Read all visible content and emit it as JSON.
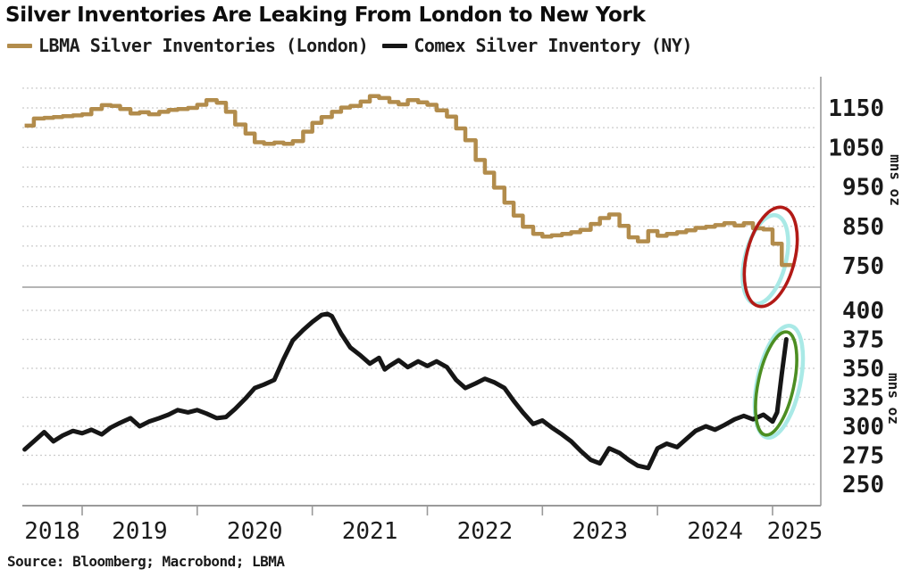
{
  "title": "Silver Inventories Are Leaking From London to New York",
  "source": "Source: Bloomberg; Macrobond; LBMA",
  "legend": [
    {
      "label": "LBMA Silver Inventories (London)",
      "color": "#b28c4c"
    },
    {
      "label": "Comex Silver Inventory (NY)",
      "color": "#161616"
    }
  ],
  "colors": {
    "grid": "#cccccc",
    "axis": "#9a9a9a",
    "divider": "#b5b5b5",
    "red_circle": "#b21a16",
    "green_circle": "#4c8e22",
    "cyan_highlight": "#a9e9e6"
  },
  "chart_data": {
    "type": "line",
    "title": "Silver Inventories Are Leaking From London to New York",
    "x_axis": {
      "year_labels": [
        2018,
        2019,
        2020,
        2021,
        2022,
        2023,
        2024,
        2025
      ],
      "range": [
        2018.47,
        2025.39
      ],
      "grid": false
    },
    "panels": [
      {
        "name": "LBMA Silver Inventories (London)",
        "position": "top",
        "color": "#b28c4c",
        "line_style": "step",
        "unit": "mns oz",
        "ylim": [
          705,
          1232
        ],
        "tick_labels": [
          1150,
          1050,
          950,
          850,
          750
        ],
        "grid_values": [
          1200,
          1150,
          1100,
          1050,
          1000,
          950,
          900,
          850,
          800,
          750
        ],
        "points": [
          [
            2018.5,
            1105
          ],
          [
            2018.58,
            1123
          ],
          [
            2018.67,
            1125
          ],
          [
            2018.75,
            1127
          ],
          [
            2018.83,
            1129
          ],
          [
            2018.92,
            1131
          ],
          [
            2019.0,
            1134
          ],
          [
            2019.08,
            1147
          ],
          [
            2019.17,
            1157
          ],
          [
            2019.25,
            1155
          ],
          [
            2019.33,
            1147
          ],
          [
            2019.42,
            1136
          ],
          [
            2019.5,
            1139
          ],
          [
            2019.58,
            1134
          ],
          [
            2019.67,
            1140
          ],
          [
            2019.75,
            1145
          ],
          [
            2019.83,
            1147
          ],
          [
            2019.92,
            1150
          ],
          [
            2020.0,
            1158
          ],
          [
            2020.08,
            1170
          ],
          [
            2020.17,
            1163
          ],
          [
            2020.25,
            1140
          ],
          [
            2020.33,
            1108
          ],
          [
            2020.42,
            1085
          ],
          [
            2020.5,
            1063
          ],
          [
            2020.58,
            1059
          ],
          [
            2020.67,
            1062
          ],
          [
            2020.75,
            1059
          ],
          [
            2020.83,
            1066
          ],
          [
            2020.92,
            1090
          ],
          [
            2021.0,
            1112
          ],
          [
            2021.08,
            1127
          ],
          [
            2021.17,
            1140
          ],
          [
            2021.25,
            1151
          ],
          [
            2021.33,
            1155
          ],
          [
            2021.42,
            1166
          ],
          [
            2021.5,
            1180
          ],
          [
            2021.58,
            1175
          ],
          [
            2021.67,
            1165
          ],
          [
            2021.75,
            1159
          ],
          [
            2021.83,
            1170
          ],
          [
            2021.92,
            1164
          ],
          [
            2022.0,
            1158
          ],
          [
            2022.08,
            1144
          ],
          [
            2022.17,
            1128
          ],
          [
            2022.25,
            1098
          ],
          [
            2022.33,
            1068
          ],
          [
            2022.42,
            1018
          ],
          [
            2022.5,
            986
          ],
          [
            2022.58,
            948
          ],
          [
            2022.67,
            910
          ],
          [
            2022.75,
            877
          ],
          [
            2022.83,
            849
          ],
          [
            2022.92,
            831
          ],
          [
            2023.0,
            824
          ],
          [
            2023.08,
            827
          ],
          [
            2023.17,
            831
          ],
          [
            2023.25,
            835
          ],
          [
            2023.33,
            841
          ],
          [
            2023.42,
            856
          ],
          [
            2023.5,
            871
          ],
          [
            2023.58,
            880
          ],
          [
            2023.67,
            851
          ],
          [
            2023.75,
            822
          ],
          [
            2023.83,
            812
          ],
          [
            2023.92,
            838
          ],
          [
            2024.0,
            826
          ],
          [
            2024.08,
            831
          ],
          [
            2024.17,
            835
          ],
          [
            2024.25,
            840
          ],
          [
            2024.33,
            846
          ],
          [
            2024.42,
            849
          ],
          [
            2024.5,
            853
          ],
          [
            2024.58,
            858
          ],
          [
            2024.67,
            852
          ],
          [
            2024.75,
            858
          ],
          [
            2024.83,
            845
          ],
          [
            2024.92,
            842
          ],
          [
            2025.0,
            806
          ],
          [
            2025.08,
            752
          ],
          [
            2025.17,
            752
          ]
        ]
      },
      {
        "name": "Comex Silver Inventory (NY)",
        "position": "bottom",
        "color": "#161616",
        "line_style": "linear",
        "unit": "mns oz",
        "ylim": [
          232,
          420
        ],
        "tick_labels": [
          400,
          375,
          350,
          325,
          300,
          275,
          250
        ],
        "grid_values": [
          400,
          375,
          350,
          325,
          300,
          275,
          250
        ],
        "points": [
          [
            2018.5,
            280
          ],
          [
            2018.58,
            287
          ],
          [
            2018.67,
            295
          ],
          [
            2018.75,
            287
          ],
          [
            2018.83,
            292
          ],
          [
            2018.92,
            296
          ],
          [
            2019.0,
            294
          ],
          [
            2019.08,
            297
          ],
          [
            2019.17,
            293
          ],
          [
            2019.25,
            299
          ],
          [
            2019.33,
            303
          ],
          [
            2019.42,
            307
          ],
          [
            2019.5,
            300
          ],
          [
            2019.58,
            304
          ],
          [
            2019.67,
            307
          ],
          [
            2019.75,
            310
          ],
          [
            2019.83,
            314
          ],
          [
            2019.92,
            312
          ],
          [
            2020.0,
            314
          ],
          [
            2020.08,
            311
          ],
          [
            2020.17,
            307
          ],
          [
            2020.25,
            308
          ],
          [
            2020.33,
            315
          ],
          [
            2020.42,
            324
          ],
          [
            2020.5,
            333
          ],
          [
            2020.58,
            336
          ],
          [
            2020.67,
            340
          ],
          [
            2020.75,
            358
          ],
          [
            2020.83,
            374
          ],
          [
            2020.92,
            383
          ],
          [
            2021.0,
            390
          ],
          [
            2021.08,
            396
          ],
          [
            2021.13,
            397
          ],
          [
            2021.17,
            395
          ],
          [
            2021.25,
            380
          ],
          [
            2021.33,
            368
          ],
          [
            2021.42,
            361
          ],
          [
            2021.5,
            354
          ],
          [
            2021.58,
            359
          ],
          [
            2021.63,
            349
          ],
          [
            2021.67,
            352
          ],
          [
            2021.75,
            357
          ],
          [
            2021.83,
            351
          ],
          [
            2021.92,
            356
          ],
          [
            2022.0,
            352
          ],
          [
            2022.08,
            356
          ],
          [
            2022.17,
            351
          ],
          [
            2022.25,
            340
          ],
          [
            2022.33,
            333
          ],
          [
            2022.42,
            337
          ],
          [
            2022.5,
            341
          ],
          [
            2022.58,
            338
          ],
          [
            2022.67,
            333
          ],
          [
            2022.75,
            322
          ],
          [
            2022.83,
            312
          ],
          [
            2022.92,
            302
          ],
          [
            2023.0,
            305
          ],
          [
            2023.08,
            299
          ],
          [
            2023.17,
            293
          ],
          [
            2023.25,
            287
          ],
          [
            2023.33,
            279
          ],
          [
            2023.42,
            271
          ],
          [
            2023.5,
            268
          ],
          [
            2023.58,
            281
          ],
          [
            2023.67,
            277
          ],
          [
            2023.75,
            271
          ],
          [
            2023.83,
            266
          ],
          [
            2023.92,
            264
          ],
          [
            2024.0,
            281
          ],
          [
            2024.08,
            285
          ],
          [
            2024.17,
            282
          ],
          [
            2024.25,
            289
          ],
          [
            2024.33,
            296
          ],
          [
            2024.42,
            300
          ],
          [
            2024.5,
            297
          ],
          [
            2024.58,
            301
          ],
          [
            2024.67,
            306
          ],
          [
            2024.75,
            309
          ],
          [
            2024.83,
            306
          ],
          [
            2024.92,
            310
          ],
          [
            2025.0,
            304
          ],
          [
            2025.04,
            312
          ],
          [
            2025.08,
            345
          ],
          [
            2025.12,
            375
          ]
        ]
      }
    ],
    "annotations": [
      {
        "type": "ellipse",
        "panel": "top",
        "color": "#b21a16",
        "highlight_color": "#a9e9e6",
        "meaning": "circle around final LBMA inventory drop"
      },
      {
        "type": "ellipse",
        "panel": "bottom",
        "color": "#4c8e22",
        "highlight_color": "#a9e9e6",
        "meaning": "circle around final Comex inventory spike"
      }
    ],
    "legend_position": "top",
    "grid_style": "dotted"
  }
}
